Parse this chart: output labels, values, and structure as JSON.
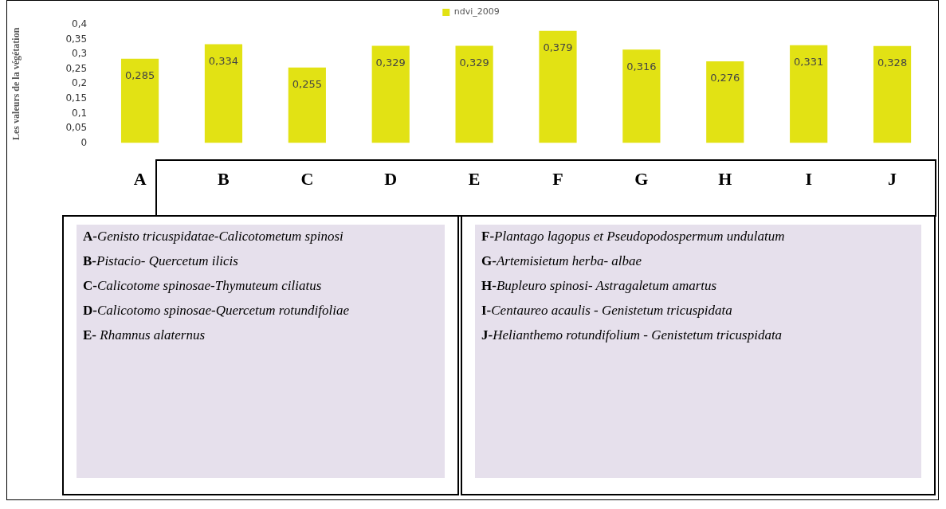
{
  "chart_data": {
    "type": "bar",
    "ylabel": "Les valeurs de la végétation",
    "categories": [
      "A",
      "B",
      "C",
      "D",
      "E",
      "F",
      "G",
      "H",
      "I",
      "J"
    ],
    "series": [
      {
        "name": "ndvi_2009",
        "color": "#e2e214",
        "values": [
          0.285,
          0.334,
          0.255,
          0.329,
          0.329,
          0.379,
          0.316,
          0.276,
          0.331,
          0.328
        ],
        "value_labels": [
          "0,285",
          "0,334",
          "0,255",
          "0,329",
          "0,329",
          "0,379",
          "0,316",
          "0,276",
          "0,331",
          "0,328"
        ]
      }
    ],
    "ylim": [
      0,
      0.4
    ],
    "yticks": [
      {
        "value": 0,
        "label": "0"
      },
      {
        "value": 0.05,
        "label": "0,05"
      },
      {
        "value": 0.1,
        "label": "0,1"
      },
      {
        "value": 0.15,
        "label": "0,15"
      },
      {
        "value": 0.2,
        "label": "0,2"
      },
      {
        "value": 0.25,
        "label": "0,25"
      },
      {
        "value": 0.3,
        "label": "0,3"
      },
      {
        "value": 0.35,
        "label": "0,35"
      },
      {
        "value": 0.4,
        "label": "0,4"
      }
    ],
    "grid": false,
    "legend": "top",
    "annotations": [
      "A-Genisto tricuspidatae-Calicotometum spinosi",
      "B-Pistacio- Quercetum ilicis",
      "C-Calicotome spinosae-Thymuteum ciliatus",
      "D-Calicotomo spinosae-Quercetum rotundifoliae",
      "E- Rhamnus alaternus",
      "F-Plantago lagopus et Pseudopodospermum undulatum",
      "G-Artemisietum herba- albae",
      "H-Bupleuro spinosi- Astragaletum amartus",
      "I-Centaureo acaulis - Genistetum tricuspidata",
      "J-Helianthemo  rotundifolium - Genistetum tricuspidata"
    ]
  }
}
